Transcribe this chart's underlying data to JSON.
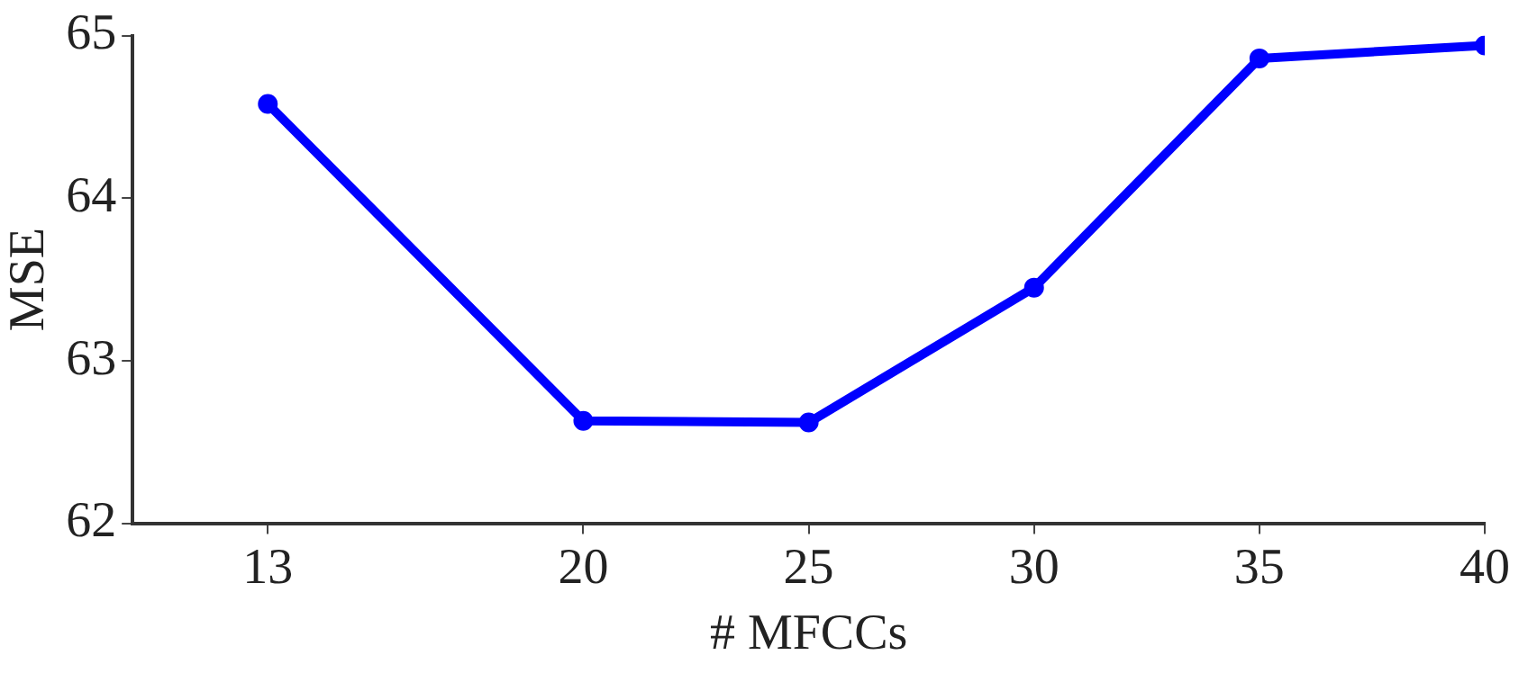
{
  "chart_data": {
    "type": "line",
    "xlabel": "# MFCCs",
    "ylabel": "MSE",
    "x": [
      13,
      20,
      25,
      30,
      35,
      40
    ],
    "series": [
      {
        "color": "#0000ff",
        "values": [
          64.58,
          62.63,
          62.62,
          63.45,
          64.86,
          64.94
        ]
      }
    ],
    "xlim": [
      10,
      40
    ],
    "xticks": [
      13,
      20,
      25,
      30,
      35,
      40
    ],
    "ylim": [
      62,
      65
    ],
    "yticks": [
      62,
      63,
      64,
      65
    ],
    "grid": false,
    "legend": false,
    "marker": "circle",
    "line_style": "solid"
  }
}
